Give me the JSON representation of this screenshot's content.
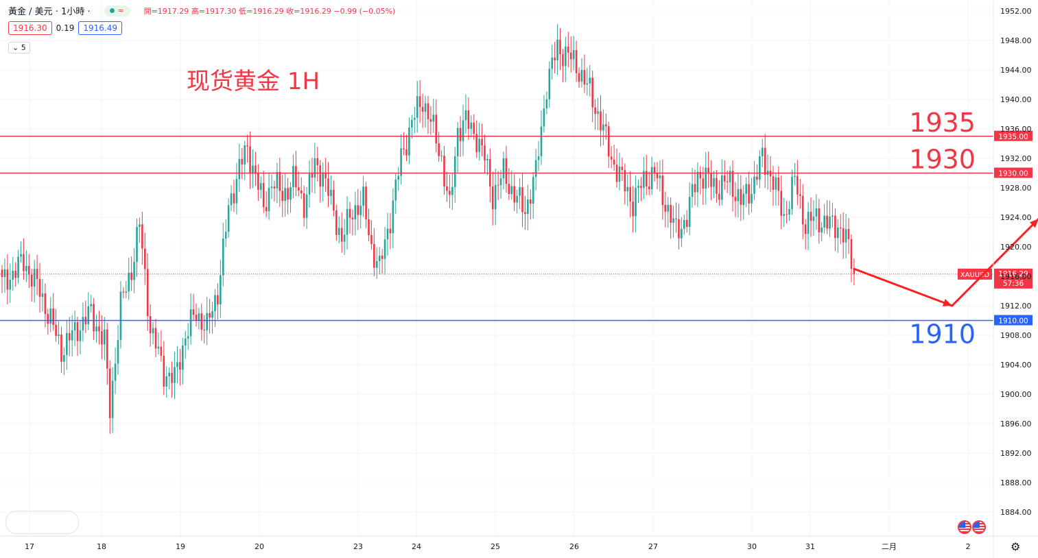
{
  "legend": {
    "symbol": "黃金 / 美元 · 1小時 ·",
    "ohlc": "開=1917.29 高=1917.30 低=1916.29 收=1916.29 −0.99 (−0.05%)",
    "status_icon": "wave-icon",
    "status_glyph": "≈"
  },
  "quote": {
    "bid": "1916.30",
    "spread": "0.19",
    "ask": "1916.49"
  },
  "indicator_toggle": "5",
  "colors": {
    "up": "#26a69a",
    "down": "#f23645",
    "support": "#2962ff",
    "resistance": "#f23645",
    "arrow": "#ff1f1f"
  },
  "chart_data": {
    "type": "candlestick",
    "title": "现货黄金 1H",
    "symbol": "XAUUSD",
    "timeframe": "1H",
    "last_price": 1916.29,
    "last_price_label": "1916.29",
    "countdown": "57:36",
    "ylim": [
      1882,
      1953.5
    ],
    "y_ticks": [
      1884,
      1888,
      1892,
      1896,
      1900,
      1904,
      1908,
      1912,
      1916,
      1920,
      1924,
      1928,
      1932,
      1936,
      1940,
      1944,
      1948,
      1952
    ],
    "y_tick_labels": [
      "1884.00",
      "1888.00",
      "1892.00",
      "1896.00",
      "1900.00",
      "1904.00",
      "1908.00",
      "1912.00",
      "1916.00",
      "1920.00",
      "1924.00",
      "1928.00",
      "1932.00",
      "1936.00",
      "1940.00",
      "1944.00",
      "1948.00",
      "1952.00"
    ],
    "x_labels": [
      "17",
      "18",
      "19",
      "20",
      "23",
      "24",
      "25",
      "26",
      "27",
      "30",
      "31",
      "二月",
      "2"
    ],
    "grid": true,
    "horizontal_levels": [
      {
        "value": 1935,
        "label": "1935",
        "axis_label": "1935.00",
        "color": "#f23645"
      },
      {
        "value": 1930,
        "label": "1930",
        "axis_label": "1930.00",
        "color": "#f23645"
      },
      {
        "value": 1910,
        "label": "1910",
        "axis_label": "1910.00",
        "color": "#2962ff"
      }
    ],
    "anchors": [
      [
        0,
        1915
      ],
      [
        8,
        1918
      ],
      [
        14,
        1914
      ],
      [
        18,
        1910
      ],
      [
        22,
        1906
      ],
      [
        28,
        1909
      ],
      [
        33,
        1911
      ],
      [
        38,
        1907
      ],
      [
        40,
        1898
      ],
      [
        44,
        1912
      ],
      [
        48,
        1917
      ],
      [
        51,
        1923
      ],
      [
        55,
        1909
      ],
      [
        60,
        1903
      ],
      [
        64,
        1902
      ],
      [
        68,
        1908
      ],
      [
        72,
        1911
      ],
      [
        76,
        1909
      ],
      [
        80,
        1914
      ],
      [
        84,
        1925
      ],
      [
        88,
        1931
      ],
      [
        91,
        1933
      ],
      [
        94,
        1930
      ],
      [
        97,
        1925
      ],
      [
        100,
        1929
      ],
      [
        104,
        1927
      ],
      [
        108,
        1929
      ],
      [
        112,
        1926
      ],
      [
        116,
        1931
      ],
      [
        119,
        1930
      ],
      [
        122,
        1926
      ],
      [
        126,
        1921
      ],
      [
        130,
        1925
      ],
      [
        134,
        1926
      ],
      [
        137,
        1920
      ],
      [
        140,
        1917
      ],
      [
        144,
        1924
      ],
      [
        148,
        1932
      ],
      [
        152,
        1937
      ],
      [
        156,
        1940
      ],
      [
        159,
        1937
      ],
      [
        163,
        1932
      ],
      [
        166,
        1925
      ],
      [
        169,
        1936
      ],
      [
        172,
        1937
      ],
      [
        176,
        1935
      ],
      [
        179,
        1932
      ],
      [
        182,
        1927
      ],
      [
        186,
        1930
      ],
      [
        190,
        1927
      ],
      [
        194,
        1925
      ],
      [
        198,
        1930
      ],
      [
        202,
        1942
      ],
      [
        206,
        1947
      ],
      [
        210,
        1946
      ],
      [
        214,
        1944
      ],
      [
        218,
        1941
      ],
      [
        222,
        1937
      ],
      [
        226,
        1932
      ],
      [
        230,
        1929
      ],
      [
        234,
        1926
      ],
      [
        238,
        1929
      ],
      [
        242,
        1930
      ],
      [
        246,
        1926
      ],
      [
        250,
        1922
      ],
      [
        254,
        1924
      ],
      [
        258,
        1930
      ],
      [
        262,
        1929
      ],
      [
        266,
        1928
      ],
      [
        270,
        1929
      ],
      [
        274,
        1926
      ],
      [
        278,
        1928
      ],
      [
        282,
        1932
      ],
      [
        286,
        1929
      ],
      [
        290,
        1924
      ],
      [
        294,
        1929
      ],
      [
        298,
        1923
      ],
      [
        302,
        1924
      ],
      [
        306,
        1923
      ],
      [
        310,
        1923
      ],
      [
        314,
        1920
      ],
      [
        316,
        1917
      ]
    ],
    "projection_path": [
      [
        1920,
        1917
      ],
      [
        1928.6,
        1912.0
      ],
      [
        1936.2,
        1923.8
      ],
      [
        1942.3,
        1917.0
      ],
      [
        1951.7,
        1929.4
      ]
    ]
  },
  "axis_marker_symbol": "XAUUSD",
  "settings_icon": "gear-icon",
  "flag_icons": [
    "us-flag-icon",
    "us-flag-icon"
  ]
}
